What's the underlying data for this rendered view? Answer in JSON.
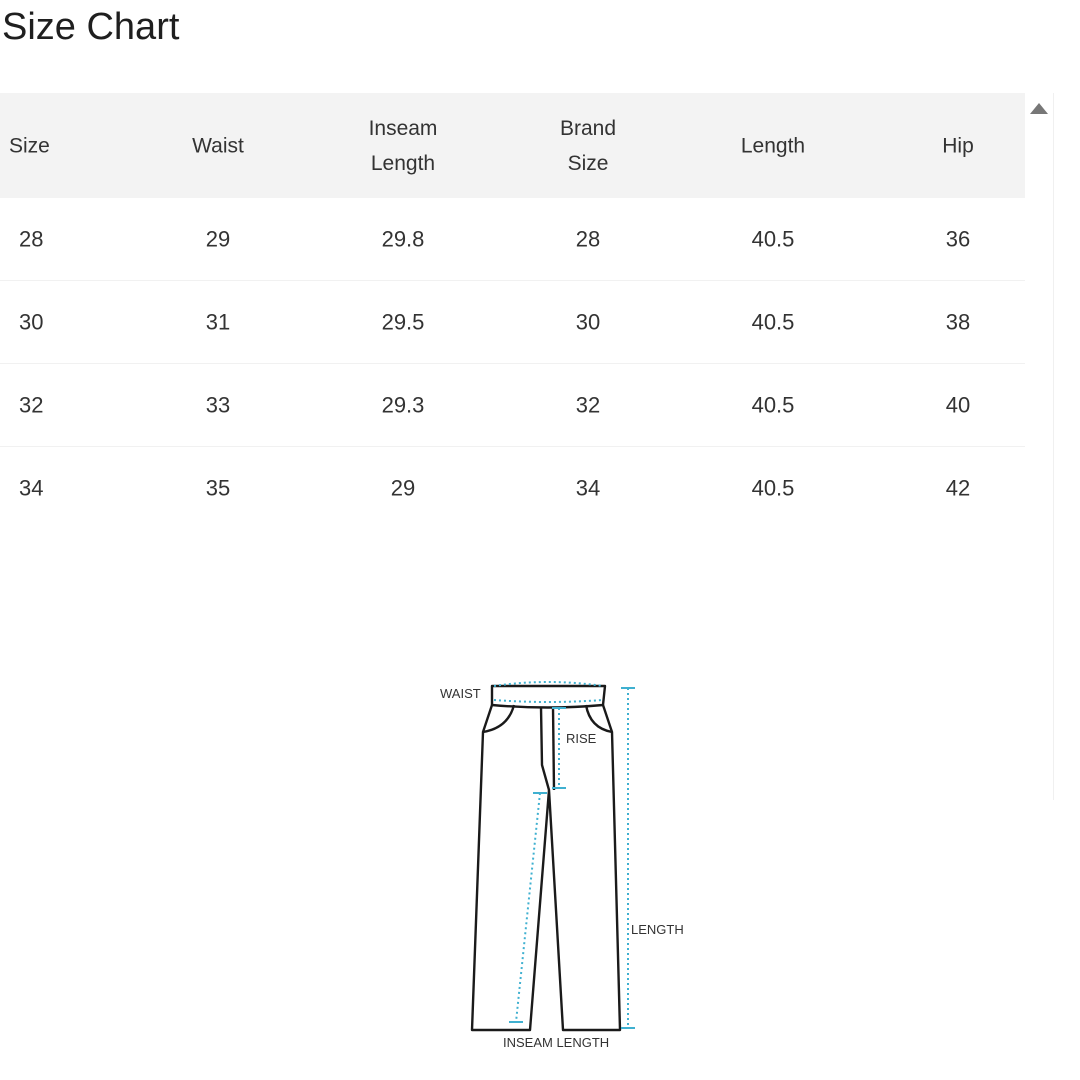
{
  "title": "Size Chart",
  "table": {
    "headers": [
      "Size",
      "Waist",
      "Inseam\nLength",
      "Brand\nSize",
      "Length",
      "Hip"
    ],
    "rows": [
      [
        "28",
        "29",
        "29.8",
        "28",
        "40.5",
        "36"
      ],
      [
        "30",
        "31",
        "29.5",
        "30",
        "40.5",
        "38"
      ],
      [
        "32",
        "33",
        "29.3",
        "32",
        "40.5",
        "40"
      ],
      [
        "34",
        "35",
        "29",
        "34",
        "40.5",
        "42"
      ]
    ]
  },
  "diagram": {
    "labels": {
      "waist": "WAIST",
      "rise": "RISE",
      "length": "LENGTH",
      "inseam": "INSEAM LENGTH"
    },
    "measure_color": "#3fb0d0"
  },
  "scrollbar": {
    "icon": "scroll-up-arrow-icon"
  }
}
